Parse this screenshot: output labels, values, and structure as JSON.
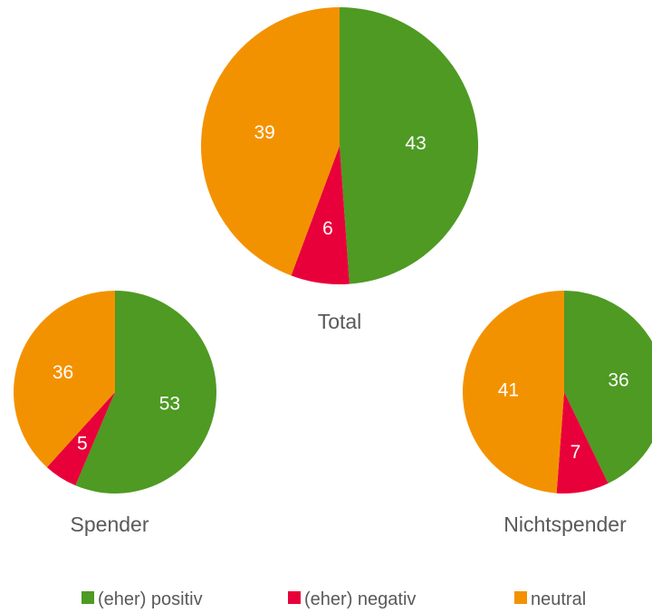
{
  "chart_data": {
    "type": "pie",
    "colors": {
      "positive": "#4e9a23",
      "negative": "#e8003a",
      "neutral": "#f39200",
      "label_text": "#595959"
    },
    "legend": [
      {
        "key": "positive",
        "label": "(eher) positiv"
      },
      {
        "key": "negative",
        "label": "(eher) negativ"
      },
      {
        "key": "neutral",
        "label": "neutral"
      }
    ],
    "pies": [
      {
        "label": "Total",
        "values": {
          "positive": 43,
          "negative": 6,
          "neutral": 39
        }
      },
      {
        "label": "Spender",
        "values": {
          "positive": 53,
          "negative": 5,
          "neutral": 36
        }
      },
      {
        "label": "Nichtspender",
        "values": {
          "positive": 36,
          "negative": 7,
          "neutral": 41
        }
      }
    ]
  }
}
